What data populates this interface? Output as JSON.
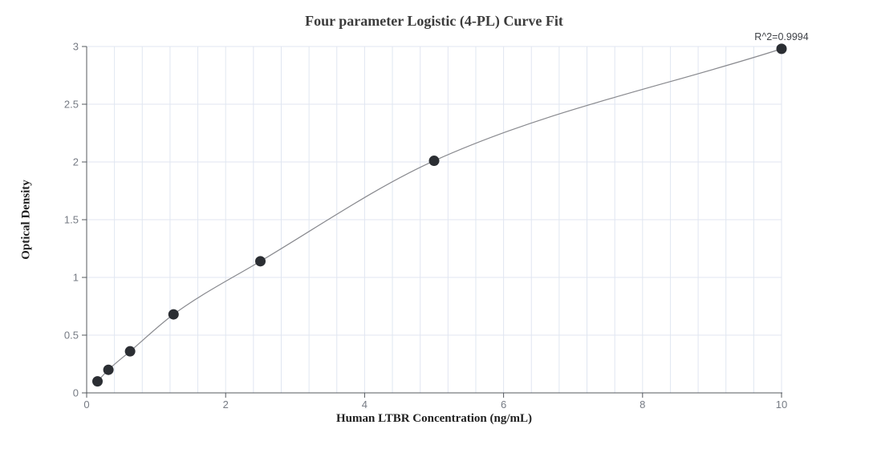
{
  "chart_data": {
    "type": "scatter",
    "title": "Four parameter Logistic (4-PL) Curve Fit",
    "xlabel": "Human LTBR Concentration (ng/mL)",
    "ylabel": "Optical Density",
    "annotation": {
      "text": "R^2=0.9994",
      "x": 10,
      "y": 2.98
    },
    "points": [
      {
        "x": 0.156,
        "y": 0.1
      },
      {
        "x": 0.313,
        "y": 0.2
      },
      {
        "x": 0.625,
        "y": 0.36
      },
      {
        "x": 1.25,
        "y": 0.68
      },
      {
        "x": 2.5,
        "y": 1.14
      },
      {
        "x": 5,
        "y": 2.01
      },
      {
        "x": 10,
        "y": 2.98
      }
    ],
    "fit": "4-parameter logistic curve through all points",
    "xlim": [
      0,
      10
    ],
    "ylim": [
      0,
      3
    ],
    "x_ticks": [
      "0",
      "2",
      "4",
      "6",
      "8",
      "10"
    ],
    "y_ticks": [
      "0",
      "0.5",
      "1",
      "1.5",
      "2",
      "2.5",
      "3"
    ],
    "x_grid_interval": 0.4,
    "y_grid_interval": 0.5,
    "grid": true,
    "legend_position": "none",
    "colors": {
      "point": "#2b2e33",
      "curve": "#88898e",
      "grid": "#e0e6f1",
      "axis": "#54585e",
      "tick_label": "#767b84",
      "title": "#3c3c3c",
      "axis_name": "#1f1f1f",
      "annotation": "#3f4247",
      "background": "#ffffff"
    }
  }
}
